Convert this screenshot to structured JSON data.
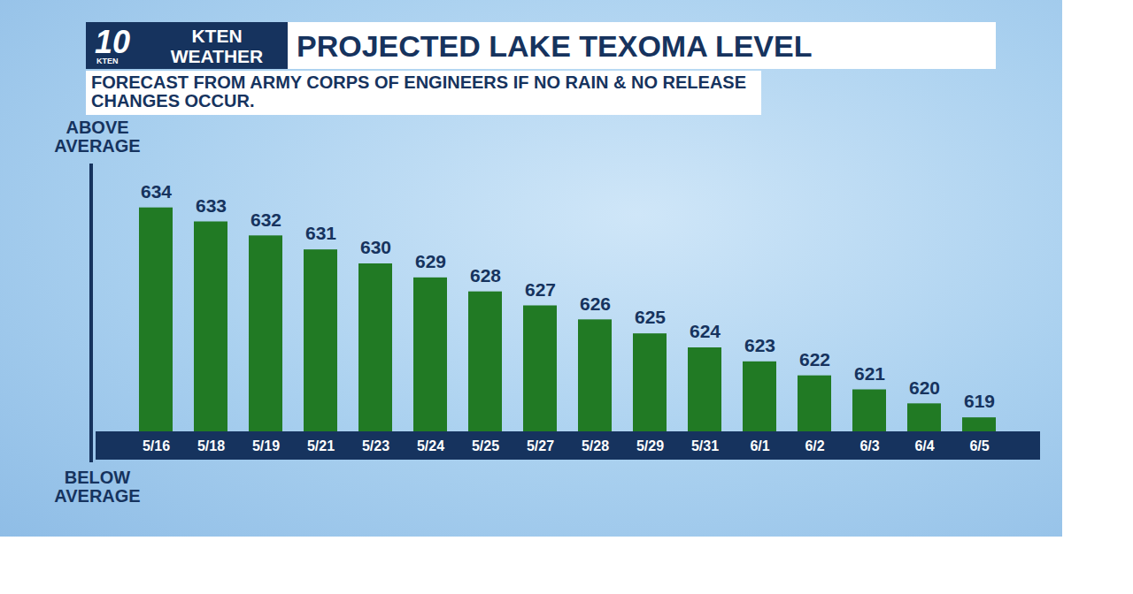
{
  "chart_data": {
    "type": "bar",
    "title": "PROJECTED LAKE TEXOMA LEVEL",
    "subtitle": "FORECAST FROM ARMY CORPS OF ENGINEERS IF NO RAIN & NO RELEASE CHANGES OCCUR.",
    "logo": {
      "number": "10",
      "station": "KTEN",
      "label": [
        "KTEN",
        "WEATHER"
      ]
    },
    "annotations": [
      "ABOVE AVERAGE",
      "BELOW AVERAGE"
    ],
    "categories": [
      "5/16",
      "5/18",
      "5/19",
      "5/21",
      "5/23",
      "5/24",
      "5/25",
      "5/27",
      "5/28",
      "5/29",
      "5/31",
      "6/1",
      "6/2",
      "6/3",
      "6/4",
      "6/5"
    ],
    "values": [
      634,
      633,
      632,
      631,
      630,
      629,
      628,
      627,
      626,
      625,
      624,
      623,
      622,
      621,
      620,
      619
    ],
    "color": "#217a24",
    "ylim": [
      618,
      636
    ],
    "yticks": [],
    "grid": false,
    "data_labels": true,
    "tick_labels": "x"
  }
}
